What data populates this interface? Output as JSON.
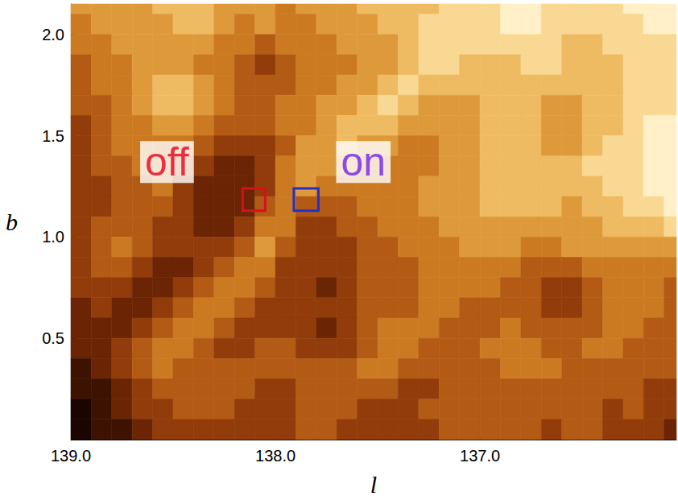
{
  "chart_data": {
    "type": "heatmap",
    "xlabel": "l",
    "ylabel": "b",
    "xlim": [
      139.0,
      136.04
    ],
    "ylim": [
      0,
      2.15
    ],
    "xticks": [
      {
        "value": 139,
        "label": "139.0"
      },
      {
        "value": 138,
        "label": "138.0"
      },
      {
        "value": 137,
        "label": "137.0"
      }
    ],
    "yticks": [
      {
        "value": 0.5,
        "label": "0.5"
      },
      {
        "value": 1,
        "label": "1.0"
      },
      {
        "value": 1.5,
        "label": "1.5"
      },
      {
        "value": 2,
        "label": "2.0"
      }
    ],
    "grid": false,
    "l_bins": [
      139.0,
      138.9,
      138.8,
      138.7,
      138.6,
      138.5,
      138.4,
      138.3,
      138.2,
      138.1,
      138.0,
      137.9,
      137.8,
      137.7,
      137.6,
      137.5,
      137.4,
      137.3,
      137.2,
      137.1,
      137.0,
      136.9,
      136.8,
      136.7,
      136.6,
      136.5,
      136.4,
      136.3,
      136.2,
      136.1,
      136.0
    ],
    "b_bins": [
      2.2,
      2.1,
      2.0,
      1.9,
      1.8,
      1.7,
      1.6,
      1.5,
      1.4,
      1.3,
      1.2,
      1.1,
      1.0,
      0.9,
      0.8,
      0.7,
      0.6,
      0.5,
      0.4,
      0.3,
      0.2,
      0.1,
      0.0
    ],
    "cells": [
      [
        6,
        6,
        6,
        6,
        7,
        7,
        7,
        6,
        6,
        6,
        5,
        6,
        6,
        6,
        7,
        7,
        7,
        7,
        8,
        8,
        8,
        9,
        9,
        8,
        8,
        8,
        8,
        9,
        9,
        9
      ],
      [
        5,
        6,
        6,
        6,
        6,
        7,
        7,
        6,
        5,
        6,
        5,
        5,
        6,
        6,
        6,
        7,
        7,
        8,
        8,
        8,
        8,
        9,
        9,
        8,
        8,
        8,
        8,
        8,
        9,
        9
      ],
      [
        5,
        5,
        6,
        6,
        6,
        6,
        6,
        5,
        5,
        4,
        5,
        5,
        5,
        6,
        6,
        6,
        7,
        8,
        8,
        8,
        8,
        8,
        8,
        8,
        7,
        7,
        8,
        8,
        8,
        8
      ],
      [
        4,
        5,
        5,
        6,
        6,
        6,
        5,
        5,
        4,
        3,
        4,
        5,
        5,
        5,
        6,
        6,
        7,
        8,
        8,
        7,
        7,
        7,
        8,
        8,
        7,
        7,
        7,
        8,
        8,
        8
      ],
      [
        4,
        5,
        5,
        6,
        7,
        7,
        6,
        5,
        4,
        4,
        4,
        5,
        5,
        6,
        6,
        7,
        8,
        7,
        7,
        7,
        7,
        7,
        7,
        7,
        7,
        7,
        7,
        8,
        8,
        8
      ],
      [
        4,
        4,
        5,
        6,
        7,
        7,
        6,
        5,
        4,
        4,
        5,
        5,
        6,
        6,
        7,
        8,
        7,
        6,
        6,
        6,
        7,
        7,
        7,
        6,
        6,
        7,
        7,
        8,
        8,
        8
      ],
      [
        3,
        4,
        5,
        5,
        6,
        6,
        5,
        4,
        4,
        4,
        5,
        5,
        6,
        7,
        7,
        7,
        6,
        6,
        6,
        6,
        7,
        7,
        7,
        6,
        6,
        7,
        7,
        8,
        9,
        9
      ],
      [
        3,
        4,
        5,
        5,
        5,
        5,
        4,
        3,
        3,
        3,
        4,
        6,
        6,
        7,
        6,
        6,
        5,
        5,
        6,
        6,
        7,
        7,
        7,
        6,
        6,
        7,
        8,
        8,
        9,
        9
      ],
      [
        3,
        4,
        4,
        5,
        5,
        4,
        3,
        2,
        2,
        3,
        5,
        6,
        6,
        6,
        5,
        5,
        5,
        5,
        6,
        6,
        7,
        7,
        7,
        7,
        7,
        8,
        8,
        8,
        9,
        9
      ],
      [
        3,
        3,
        4,
        4,
        5,
        3,
        2,
        2,
        2,
        3,
        5,
        6,
        5,
        5,
        5,
        5,
        5,
        6,
        6,
        6,
        7,
        7,
        7,
        7,
        7,
        7,
        8,
        8,
        9,
        9
      ],
      [
        3,
        3,
        4,
        4,
        4,
        3,
        2,
        2,
        2,
        4,
        5,
        4,
        4,
        4,
        5,
        5,
        5,
        6,
        6,
        6,
        7,
        7,
        7,
        7,
        6,
        7,
        7,
        8,
        8,
        9
      ],
      [
        3,
        4,
        4,
        4,
        3,
        3,
        2,
        2,
        3,
        5,
        5,
        3,
        3,
        4,
        4,
        5,
        5,
        5,
        6,
        6,
        6,
        6,
        6,
        6,
        6,
        6,
        7,
        7,
        7,
        8
      ],
      [
        3,
        4,
        5,
        4,
        3,
        3,
        3,
        3,
        4,
        6,
        4,
        3,
        3,
        3,
        4,
        4,
        5,
        5,
        5,
        6,
        6,
        6,
        5,
        5,
        6,
        6,
        6,
        6,
        6,
        6
      ],
      [
        3,
        4,
        4,
        3,
        2,
        2,
        3,
        4,
        5,
        5,
        3,
        3,
        3,
        3,
        4,
        4,
        4,
        5,
        5,
        5,
        5,
        5,
        4,
        4,
        4,
        5,
        5,
        5,
        5,
        5
      ],
      [
        3,
        3,
        3,
        2,
        2,
        3,
        4,
        5,
        5,
        4,
        3,
        3,
        2,
        3,
        4,
        4,
        4,
        5,
        5,
        5,
        5,
        4,
        4,
        3,
        3,
        4,
        5,
        5,
        5,
        4
      ],
      [
        2,
        3,
        2,
        2,
        3,
        4,
        5,
        5,
        4,
        3,
        3,
        3,
        3,
        3,
        4,
        4,
        4,
        5,
        5,
        4,
        4,
        4,
        4,
        3,
        3,
        4,
        5,
        5,
        5,
        4
      ],
      [
        2,
        2,
        2,
        3,
        4,
        5,
        5,
        4,
        3,
        3,
        3,
        3,
        2,
        3,
        4,
        5,
        5,
        5,
        4,
        4,
        4,
        5,
        4,
        4,
        4,
        4,
        5,
        5,
        4,
        4
      ],
      [
        2,
        2,
        3,
        4,
        5,
        5,
        4,
        3,
        3,
        4,
        4,
        3,
        3,
        3,
        4,
        5,
        5,
        4,
        4,
        4,
        5,
        5,
        5,
        4,
        4,
        5,
        5,
        4,
        4,
        4
      ],
      [
        1,
        2,
        3,
        4,
        5,
        4,
        4,
        4,
        4,
        4,
        4,
        4,
        4,
        4,
        5,
        5,
        4,
        4,
        4,
        4,
        4,
        5,
        5,
        5,
        4,
        4,
        4,
        4,
        4,
        4
      ],
      [
        1,
        1,
        2,
        3,
        4,
        4,
        4,
        4,
        4,
        3,
        3,
        4,
        4,
        4,
        4,
        4,
        3,
        3,
        4,
        4,
        4,
        4,
        4,
        4,
        4,
        4,
        4,
        4,
        3,
        3
      ],
      [
        0,
        1,
        2,
        3,
        3,
        4,
        4,
        4,
        3,
        3,
        3,
        4,
        4,
        4,
        3,
        3,
        3,
        4,
        4,
        4,
        4,
        4,
        4,
        4,
        4,
        4,
        3,
        4,
        3,
        3
      ],
      [
        0,
        1,
        1,
        2,
        3,
        3,
        3,
        3,
        3,
        3,
        3,
        4,
        4,
        3,
        3,
        3,
        3,
        3,
        4,
        4,
        4,
        4,
        4,
        3,
        4,
        4,
        3,
        3,
        3,
        2
      ]
    ],
    "annotations": [
      {
        "text": "off",
        "l": 138.53,
        "b": 1.37,
        "color": "#e8001c",
        "box": {
          "l": [
            138.16,
            138.05
          ],
          "b": [
            1.13,
            1.24
          ],
          "color": "#d8101c"
        }
      },
      {
        "text": "on",
        "l": 137.57,
        "b": 1.37,
        "color": "#7022f0",
        "box": {
          "l": [
            137.91,
            137.79
          ],
          "b": [
            1.13,
            1.24
          ],
          "color": "#2430c8"
        }
      }
    ]
  }
}
